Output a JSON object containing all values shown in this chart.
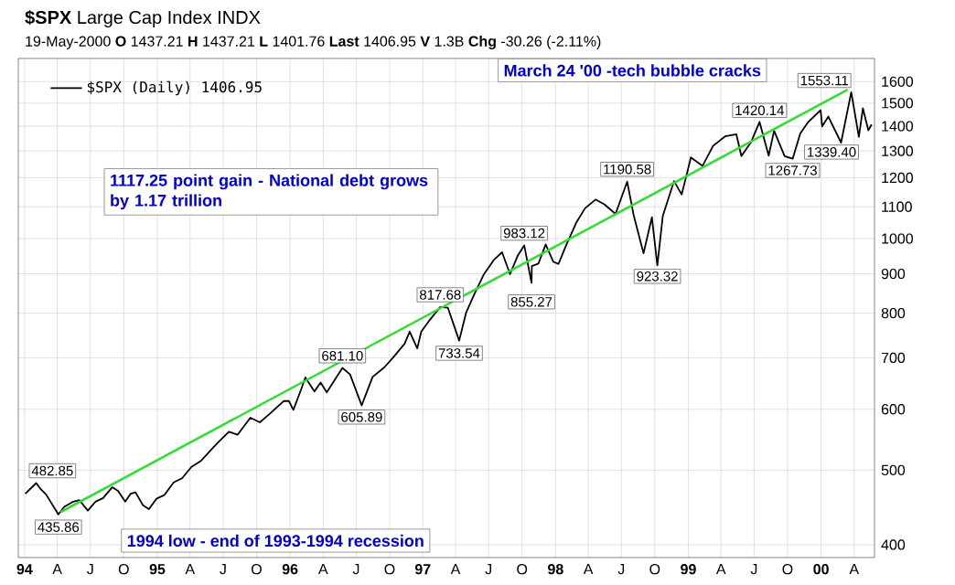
{
  "chart_data": {
    "type": "line",
    "title": "**$SPX** Large Cap Index INDX",
    "subtitle": "19-May-2000 **O** 1437.21 **H** 1437.21 **L** 1401.76 **Last** 1406.95 **V** 1.3B **Chg** -30.26 (-2.11%)",
    "log": "y",
    "grid": true,
    "legend": "top left",
    "marker": "none",
    "line_style": "solid",
    "xlim": [
      "1993-12-15",
      "2000-05-27"
    ],
    "ylim": [
      385,
      1715
    ],
    "xticks": [
      {
        "value": "1994-01-01",
        "label": "94"
      },
      {
        "value": "1994-04-01",
        "label": "A"
      },
      {
        "value": "1994-07-01",
        "label": "J"
      },
      {
        "value": "1994-10-01",
        "label": "O"
      },
      {
        "value": "1995-01-01",
        "label": "95"
      },
      {
        "value": "1995-04-01",
        "label": "A"
      },
      {
        "value": "1995-07-01",
        "label": "J"
      },
      {
        "value": "1995-10-01",
        "label": "O"
      },
      {
        "value": "1996-01-01",
        "label": "96"
      },
      {
        "value": "1996-04-01",
        "label": "A"
      },
      {
        "value": "1996-07-01",
        "label": "J"
      },
      {
        "value": "1996-10-01",
        "label": "O"
      },
      {
        "value": "1997-01-01",
        "label": "97"
      },
      {
        "value": "1997-04-01",
        "label": "A"
      },
      {
        "value": "1997-07-01",
        "label": "J"
      },
      {
        "value": "1997-10-01",
        "label": "O"
      },
      {
        "value": "1998-01-01",
        "label": "98"
      },
      {
        "value": "1998-04-01",
        "label": "A"
      },
      {
        "value": "1998-07-01",
        "label": "J"
      },
      {
        "value": "1998-10-01",
        "label": "O"
      },
      {
        "value": "1999-01-01",
        "label": "99"
      },
      {
        "value": "1999-04-01",
        "label": "A"
      },
      {
        "value": "1999-07-01",
        "label": "J"
      },
      {
        "value": "1999-10-01",
        "label": "O"
      },
      {
        "value": "2000-01-01",
        "label": "00"
      },
      {
        "value": "2000-04-01",
        "label": "A"
      }
    ],
    "yticks": [
      400,
      500,
      600,
      700,
      800,
      900,
      1000,
      1100,
      1200,
      1300,
      1400,
      1500,
      1600
    ],
    "series": [
      {
        "name": "$SPX (Daily) 1406.95",
        "color": "#000000",
        "x": [
          "1994-01-03",
          "1994-02-02",
          "1994-02-15",
          "1994-03-01",
          "1994-04-04",
          "1994-04-20",
          "1994-05-15",
          "1994-06-01",
          "1994-06-24",
          "1994-07-15",
          "1994-08-05",
          "1994-08-30",
          "1994-09-15",
          "1994-10-05",
          "1994-10-20",
          "1994-11-02",
          "1994-11-23",
          "1994-12-09",
          "1994-12-30",
          "1995-01-20",
          "1995-02-15",
          "1995-03-10",
          "1995-04-05",
          "1995-05-01",
          "1995-05-30",
          "1995-06-20",
          "1995-07-17",
          "1995-08-10",
          "1995-09-14",
          "1995-10-10",
          "1995-11-03",
          "1995-11-30",
          "1995-12-15",
          "1995-12-29",
          "1996-01-10",
          "1996-01-31",
          "1996-02-12",
          "1996-03-08",
          "1996-03-25",
          "1996-04-11",
          "1996-05-24",
          "1996-06-14",
          "1996-07-16",
          "1996-08-15",
          "1996-09-16",
          "1996-10-10",
          "1996-11-11",
          "1996-11-25",
          "1996-12-16",
          "1996-12-27",
          "1997-01-21",
          "1997-02-18",
          "1997-03-11",
          "1997-04-11",
          "1997-04-30",
          "1997-05-23",
          "1997-06-17",
          "1997-07-16",
          "1997-08-07",
          "1997-08-29",
          "1997-09-19",
          "1997-10-07",
          "1997-10-27",
          "1997-10-28",
          "1997-11-15",
          "1997-12-05",
          "1997-12-26",
          "1998-01-09",
          "1998-01-30",
          "1998-02-27",
          "1998-03-23",
          "1998-04-21",
          "1998-05-15",
          "1998-06-15",
          "1998-07-17",
          "1998-08-04",
          "1998-08-31",
          "1998-09-23",
          "1998-10-08",
          "1998-10-23",
          "1998-11-23",
          "1998-12-14",
          "1998-12-31",
          "1999-01-08",
          "1999-02-09",
          "1999-03-10",
          "1999-04-12",
          "1999-05-13",
          "1999-05-27",
          "1999-06-23",
          "1999-07-16",
          "1999-08-10",
          "1999-08-25",
          "1999-09-23",
          "1999-10-15",
          "1999-11-05",
          "1999-11-26",
          "1999-12-31",
          "2000-01-04",
          "2000-01-21",
          "2000-02-25",
          "2000-03-24",
          "2000-04-14",
          "2000-04-25",
          "2000-05-10",
          "2000-05-19"
        ],
        "values": [
          466,
          481,
          472,
          465,
          438,
          448,
          455,
          457,
          443,
          455,
          460,
          475,
          470,
          455,
          466,
          468,
          450,
          445,
          459,
          464,
          482,
          488,
          505,
          514,
          532,
          545,
          561,
          556,
          585,
          577,
          590,
          606,
          615,
          615,
          599,
          636,
          660,
          633,
          650,
          631,
          679,
          666,
          607,
          661,
          680,
          700,
          730,
          757,
          720,
          757,
          785,
          815,
          813,
          737,
          801,
          847,
          897,
          939,
          960,
          899,
          950,
          980,
          876,
          921,
          928,
          983,
          933,
          927,
          980,
          1049,
          1095,
          1124,
          1108,
          1077,
          1186,
          1072,
          957,
          1066,
          923,
          1070,
          1188,
          1141,
          1229,
          1275,
          1243,
          1320,
          1358,
          1367,
          1280,
          1336,
          1418,
          1282,
          1381,
          1280,
          1270,
          1370,
          1416,
          1469,
          1399,
          1441,
          1333,
          1550,
          1356,
          1477,
          1383,
          1407
        ]
      },
      {
        "type": "line",
        "color": "#33dd33",
        "x": [
          "1994-04-10",
          "2000-03-14"
        ],
        "values": [
          441,
          1562
        ]
      }
    ],
    "annotations": [
      "1117.25 point gain - National debt grows by 1.17 trillion",
      "March 24 '00 -tech bubble cracks",
      "1994 low - end of 1993-1994 recession",
      {
        "text": "482.85",
        "x": "1994-02-02",
        "y": 482.85
      },
      {
        "text": "435.86",
        "x": "1994-04-04",
        "y": 435.86
      },
      {
        "text": "681.10",
        "x": "1996-05-24",
        "y": 681.1
      },
      {
        "text": "605.89",
        "x": "1996-07-16",
        "y": 605.89
      },
      {
        "text": "817.68",
        "x": "1997-02-18",
        "y": 817.68
      },
      {
        "text": "733.54",
        "x": "1997-04-11",
        "y": 733.54
      },
      {
        "text": "983.12",
        "x": "1997-10-07",
        "y": 983.12
      },
      {
        "text": "855.27",
        "x": "1997-10-27",
        "y": 855.27
      },
      {
        "text": "1190.58",
        "x": "1998-07-17",
        "y": 1190.58
      },
      {
        "text": "923.32",
        "x": "1998-10-08",
        "y": 923.32
      },
      {
        "text": "1420.14",
        "x": "1999-07-16",
        "y": 1420.14
      },
      {
        "text": "1267.73",
        "x": "1999-10-15",
        "y": 1267.73
      },
      {
        "text": "1553.11",
        "x": "2000-03-24",
        "y": 1553.11
      },
      {
        "text": "1339.40",
        "x": "2000-04-14",
        "y": 1339.4
      }
    ]
  }
}
